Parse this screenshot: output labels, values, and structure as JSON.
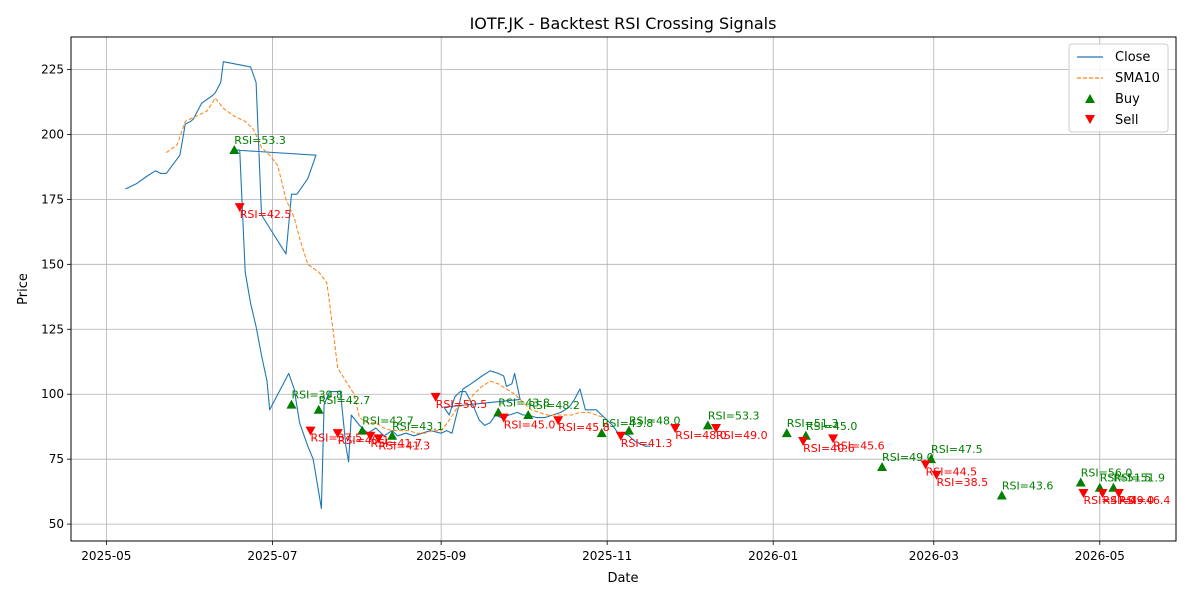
{
  "chart_data": {
    "type": "line",
    "title": "IOTF.JK - Backtest RSI Crossing Signals",
    "xlabel": "Date",
    "ylabel": "Price",
    "xlim": [
      "2025-04-18",
      "2026-05-29"
    ],
    "ylim": [
      43.5,
      237.5
    ],
    "grid": true,
    "legend_placement": "top-right",
    "x_ticks": [
      "2025-05-01",
      "2025-07-01",
      "2025-09-01",
      "2025-11-01",
      "2026-01-01",
      "2026-03-01",
      "2026-05-01"
    ],
    "x_tick_labels": [
      "2025-05",
      "2025-07",
      "2025-09",
      "2025-11",
      "2026-01",
      "2026-03",
      "2026-05"
    ],
    "y_ticks": [
      50,
      75,
      100,
      125,
      150,
      175,
      200,
      225
    ],
    "y_tick_labels": [
      "50",
      "75",
      "100",
      "125",
      "150",
      "175",
      "200",
      "225"
    ],
    "colors": {
      "close": "#1f77b4",
      "sma": "#ff7f0e",
      "buy": "#008000",
      "sell": "#ff0000"
    },
    "legend": [
      "Close",
      "SMA10",
      "Buy",
      "Sell"
    ],
    "series": [
      {
        "name": "Close",
        "points": [
          [
            "2025-05-08",
            179
          ],
          [
            "2025-05-12",
            181
          ],
          [
            "2025-05-16",
            184
          ],
          [
            "2025-05-19",
            186
          ],
          [
            "2025-05-21",
            185
          ],
          [
            "2025-05-23",
            185
          ],
          [
            "2025-05-28",
            192
          ],
          [
            "2025-05-30",
            204
          ],
          [
            "2025-06-01",
            205
          ],
          [
            "2025-06-02",
            206
          ],
          [
            "2025-06-05",
            212
          ],
          [
            "2025-06-09",
            215
          ],
          [
            "2025-06-10",
            216
          ],
          [
            "2025-06-12",
            220
          ],
          [
            "2025-06-13",
            228
          ],
          [
            "2025-06-23",
            226
          ],
          [
            "2025-06-25",
            220
          ],
          [
            "2025-06-27",
            169
          ],
          [
            "2025-07-06",
            154
          ],
          [
            "2025-07-08",
            177
          ],
          [
            "2025-07-10",
            177
          ],
          [
            "2025-07-14",
            183
          ],
          [
            "2025-07-17",
            192
          ],
          [
            "2025-06-17",
            194
          ],
          [
            "2025-06-19",
            194
          ],
          [
            "2025-06-21",
            147
          ],
          [
            "2025-06-23",
            135
          ],
          [
            "2025-06-25",
            126
          ],
          [
            "2025-06-27",
            115
          ],
          [
            "2025-06-29",
            105
          ],
          [
            "2025-06-30",
            94
          ],
          [
            "2025-07-03",
            100
          ],
          [
            "2025-07-05",
            104
          ],
          [
            "2025-07-07",
            108
          ],
          [
            "2025-07-09",
            102
          ],
          [
            "2025-07-11",
            89
          ],
          [
            "2025-07-14",
            80
          ],
          [
            "2025-07-16",
            75
          ],
          [
            "2025-07-19",
            56
          ],
          [
            "2025-07-20",
            96
          ],
          [
            "2025-07-22",
            101
          ],
          [
            "2025-07-26",
            101
          ],
          [
            "2025-07-28",
            80
          ],
          [
            "2025-07-29",
            74
          ],
          [
            "2025-07-30",
            92
          ],
          [
            "2025-08-02",
            88
          ],
          [
            "2025-08-05",
            85
          ],
          [
            "2025-08-08",
            87
          ],
          [
            "2025-08-11",
            84
          ],
          [
            "2025-08-14",
            86
          ],
          [
            "2025-08-16",
            84
          ],
          [
            "2025-08-19",
            85
          ],
          [
            "2025-08-22",
            84
          ],
          [
            "2025-08-25",
            85
          ],
          [
            "2025-08-28",
            86
          ],
          [
            "2025-09-01",
            85
          ],
          [
            "2025-09-03",
            86
          ],
          [
            "2025-09-05",
            85
          ],
          [
            "2025-09-09",
            102
          ],
          [
            "2025-09-12",
            104
          ],
          [
            "2025-09-16",
            107
          ],
          [
            "2025-09-19",
            109
          ],
          [
            "2025-09-22",
            108
          ],
          [
            "2025-09-24",
            107
          ],
          [
            "2025-09-25",
            103
          ],
          [
            "2025-09-27",
            104
          ],
          [
            "2025-09-28",
            108
          ],
          [
            "2025-09-30",
            98
          ],
          [
            "2025-09-02",
            95
          ],
          [
            "2025-09-04",
            92
          ],
          [
            "2025-09-06",
            99
          ],
          [
            "2025-09-08",
            101
          ],
          [
            "2025-09-10",
            101
          ],
          [
            "2025-09-13",
            95
          ],
          [
            "2025-09-15",
            90
          ],
          [
            "2025-09-17",
            88
          ],
          [
            "2025-09-19",
            89
          ],
          [
            "2025-09-21",
            92
          ],
          [
            "2025-09-23",
            91
          ],
          [
            "2025-09-26",
            92
          ],
          [
            "2025-09-29",
            93
          ],
          [
            "2025-10-01",
            92
          ],
          [
            "2025-10-03",
            92
          ],
          [
            "2025-10-06",
            91
          ],
          [
            "2025-10-09",
            91
          ],
          [
            "2025-10-12",
            92
          ],
          [
            "2025-10-15",
            93
          ],
          [
            "2025-10-18",
            95
          ],
          [
            "2025-10-20",
            98
          ],
          [
            "2025-10-22",
            102
          ],
          [
            "2025-10-24",
            94
          ],
          [
            "2025-10-26",
            94
          ],
          [
            "2025-10-28",
            94
          ],
          [
            "2025-10-31",
            91
          ],
          [
            "2025-11-03",
            88
          ],
          [
            "2025-11-05",
            85
          ],
          [
            "2025-11-07",
            85
          ],
          [
            "2025-11-09",
            84
          ],
          [
            "2025-11-11",
            82
          ],
          [
            "2025-11-13",
            81
          ],
          [
            "2025-11-15",
            80
          ],
          [
            "2025-11-17",
            80
          ]
        ]
      },
      {
        "name": "SMA10",
        "points": [
          [
            "2025-05-23",
            193
          ],
          [
            "2025-05-27",
            196
          ],
          [
            "2025-05-30",
            205
          ],
          [
            "2025-06-03",
            207
          ],
          [
            "2025-06-07",
            209
          ],
          [
            "2025-06-10",
            214
          ],
          [
            "2025-06-13",
            210
          ],
          [
            "2025-06-17",
            207
          ],
          [
            "2025-06-21",
            205
          ],
          [
            "2025-06-24",
            202
          ],
          [
            "2025-06-27",
            195
          ],
          [
            "2025-06-30",
            192
          ],
          [
            "2025-07-03",
            188
          ],
          [
            "2025-07-06",
            175
          ],
          [
            "2025-07-09",
            168
          ],
          [
            "2025-07-11",
            160
          ],
          [
            "2025-07-14",
            150
          ],
          [
            "2025-07-18",
            147
          ],
          [
            "2025-07-21",
            143
          ],
          [
            "2025-07-23",
            127
          ],
          [
            "2025-07-25",
            110
          ],
          [
            "2025-07-28",
            105
          ],
          [
            "2025-07-31",
            100
          ],
          [
            "2025-08-02",
            91
          ],
          [
            "2025-08-05",
            89
          ],
          [
            "2025-08-08",
            89
          ],
          [
            "2025-08-11",
            87
          ],
          [
            "2025-08-14",
            86
          ],
          [
            "2025-08-17",
            86
          ],
          [
            "2025-08-20",
            86
          ],
          [
            "2025-08-23",
            85
          ],
          [
            "2025-08-26",
            85
          ],
          [
            "2025-08-29",
            86
          ],
          [
            "2025-09-01",
            86
          ],
          [
            "2025-09-04",
            90
          ],
          [
            "2025-09-07",
            95
          ],
          [
            "2025-09-10",
            96
          ],
          [
            "2025-09-13",
            100
          ],
          [
            "2025-09-16",
            103
          ],
          [
            "2025-09-19",
            105
          ],
          [
            "2025-09-22",
            104
          ],
          [
            "2025-09-25",
            102
          ],
          [
            "2025-09-28",
            100
          ],
          [
            "2025-10-01",
            97
          ],
          [
            "2025-10-04",
            94
          ],
          [
            "2025-10-07",
            93
          ],
          [
            "2025-10-10",
            92
          ],
          [
            "2025-10-13",
            92
          ],
          [
            "2025-10-16",
            92
          ],
          [
            "2025-10-19",
            92
          ],
          [
            "2025-10-22",
            93
          ],
          [
            "2025-10-25",
            93
          ],
          [
            "2025-10-28",
            92
          ],
          [
            "2025-10-31",
            91
          ]
        ]
      }
    ],
    "buy_signals": [
      {
        "date": "2025-06-17",
        "price": 194,
        "label": "RSI=53.3"
      },
      {
        "date": "2025-07-08",
        "price": 96,
        "label": "RSI=39.8"
      },
      {
        "date": "2025-07-18",
        "price": 94,
        "label": "RSI=42.7"
      },
      {
        "date": "2025-08-03",
        "price": 86,
        "label": "RSI=42.7"
      },
      {
        "date": "2025-08-14",
        "price": 84,
        "label": "RSI=43.1"
      },
      {
        "date": "2025-09-22",
        "price": 93,
        "label": "RSI=43.8"
      },
      {
        "date": "2025-10-03",
        "price": 92,
        "label": "RSI=48.2"
      },
      {
        "date": "2025-10-30",
        "price": 85,
        "label": "RSI=43.8"
      },
      {
        "date": "2025-11-09",
        "price": 86,
        "label": "RSI=48.0"
      },
      {
        "date": "2025-12-08",
        "price": 88,
        "label": "RSI=53.3"
      },
      {
        "date": "2026-01-06",
        "price": 85,
        "label": "RSI=51.3"
      },
      {
        "date": "2026-01-13",
        "price": 84,
        "label": "RSI=45.0"
      },
      {
        "date": "2026-02-10",
        "price": 72,
        "label": "RSI=49.0"
      },
      {
        "date": "2026-02-28",
        "price": 75,
        "label": "RSI=47.5"
      },
      {
        "date": "2026-03-26",
        "price": 61,
        "label": "RSI=43.6"
      },
      {
        "date": "2026-04-24",
        "price": 66,
        "label": "RSI=56.0"
      },
      {
        "date": "2026-05-01",
        "price": 64,
        "label": "RSI=51.5"
      },
      {
        "date": "2026-05-06",
        "price": 64,
        "label": "RSI=51.9"
      }
    ],
    "sell_signals": [
      {
        "date": "2025-06-19",
        "price": 172,
        "label": "RSI=42.5"
      },
      {
        "date": "2025-07-15",
        "price": 86,
        "label": "RSI=37.5"
      },
      {
        "date": "2025-07-25",
        "price": 85,
        "label": "RSI=40.1"
      },
      {
        "date": "2025-08-06",
        "price": 84,
        "label": "RSI=41.7"
      },
      {
        "date": "2025-08-09",
        "price": 83,
        "label": "RSI=41.3"
      },
      {
        "date": "2025-08-30",
        "price": 99,
        "label": "RSI=50.5"
      },
      {
        "date": "2025-09-24",
        "price": 91,
        "label": "RSI=45.0"
      },
      {
        "date": "2025-10-14",
        "price": 90,
        "label": "RSI=45.8"
      },
      {
        "date": "2025-11-06",
        "price": 84,
        "label": "RSI=41.3"
      },
      {
        "date": "2025-11-26",
        "price": 87,
        "label": "RSI=48.0"
      },
      {
        "date": "2025-12-11",
        "price": 87,
        "label": "RSI=49.0"
      },
      {
        "date": "2026-01-12",
        "price": 82,
        "label": "RSI=40.6"
      },
      {
        "date": "2026-01-23",
        "price": 83,
        "label": "RSI=45.6"
      },
      {
        "date": "2026-02-26",
        "price": 73,
        "label": "RSI=44.5"
      },
      {
        "date": "2026-03-02",
        "price": 69,
        "label": "RSI=38.5"
      },
      {
        "date": "2026-04-25",
        "price": 62,
        "label": "RSI=47.0"
      },
      {
        "date": "2026-05-02",
        "price": 62,
        "label": "RSI=49.0"
      },
      {
        "date": "2026-05-08",
        "price": 62,
        "label": "RSI=46.4"
      }
    ]
  }
}
